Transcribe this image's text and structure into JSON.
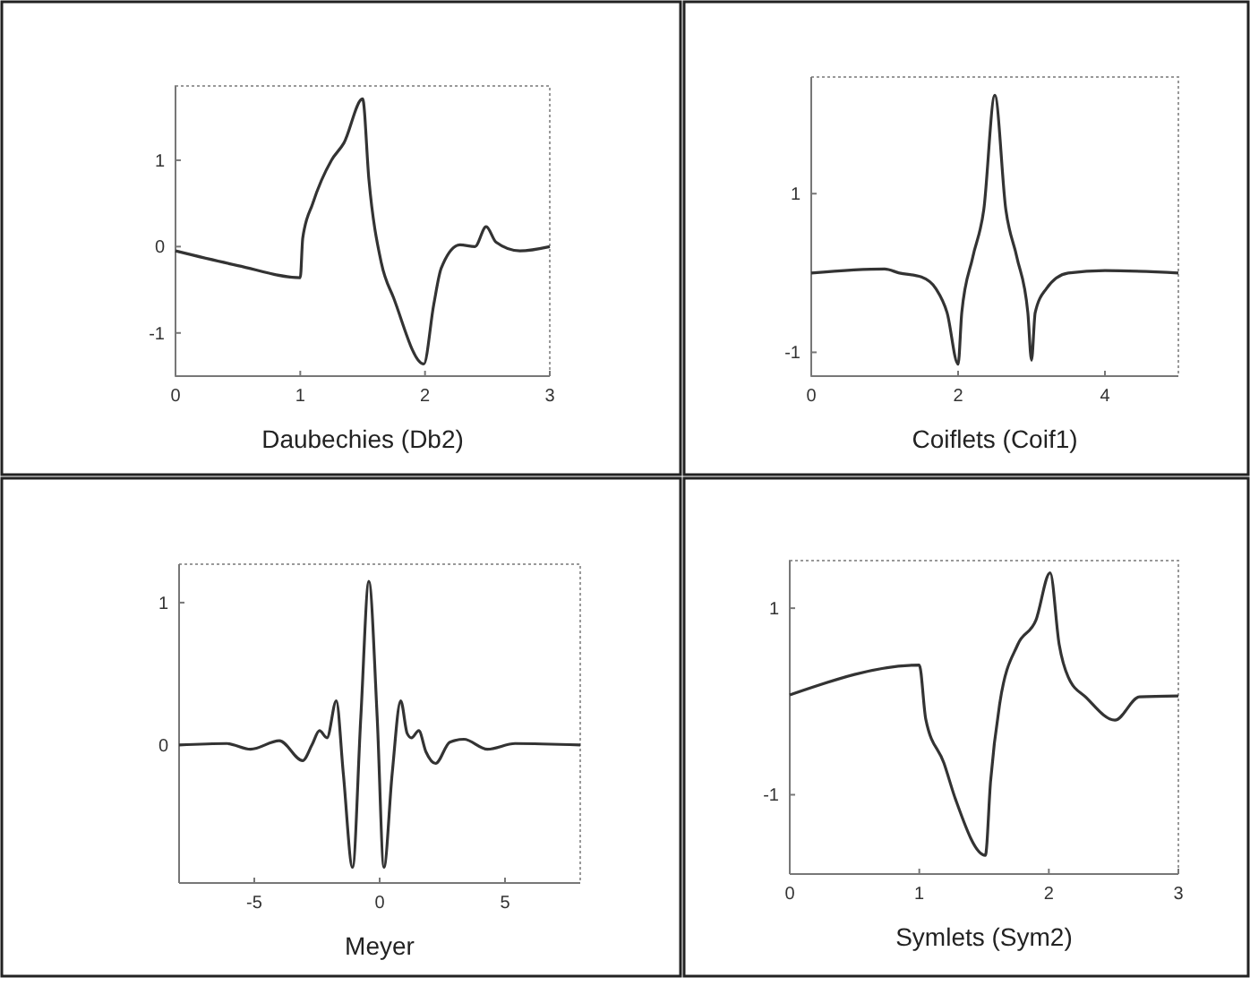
{
  "chart_data": [
    {
      "type": "line",
      "xlabel": "Daubechies (Db2)",
      "xlim": [
        0,
        3
      ],
      "ylim": [
        -1.5,
        1.86
      ],
      "xticks": [
        0,
        1,
        2,
        3
      ],
      "yticks": [
        -1,
        0,
        1
      ],
      "grid": false,
      "series": [
        {
          "color": "#333333",
          "x": [
            0,
            0.5,
            1,
            1.02,
            1.1,
            1.25,
            1.35,
            1.5,
            1.55,
            1.65,
            1.75,
            1.99,
            2.07,
            2.13,
            2.28,
            2.4,
            2.49,
            2.57,
            2.76,
            3
          ],
          "values": [
            -0.05,
            -0.22,
            -0.36,
            0.1,
            0.5,
            1.0,
            1.2,
            1.71,
            0.78,
            -0.19,
            -0.6,
            -1.36,
            -0.67,
            -0.25,
            0.02,
            0.0,
            0.23,
            0.05,
            -0.05,
            0
          ]
        }
      ]
    },
    {
      "type": "line",
      "xlabel": "Coiflets (Coif1)",
      "xlim": [
        0,
        5
      ],
      "ylim": [
        -1.3,
        2.47
      ],
      "xticks": [
        0,
        2,
        4
      ],
      "yticks": [
        -1,
        1
      ],
      "grid": false,
      "series": [
        {
          "color": "#333333",
          "x": [
            0,
            1,
            1.2,
            1.5,
            1.7,
            1.85,
            2.0,
            2.05,
            2.2,
            2.35,
            2.5,
            2.65,
            2.8,
            2.95,
            3.0,
            3.05,
            3.2,
            3.5,
            4,
            5
          ],
          "values": [
            0,
            0.05,
            0,
            -0.05,
            -0.2,
            -0.5,
            -1.15,
            -0.5,
            0.2,
            0.8,
            2.24,
            0.8,
            0.2,
            -0.5,
            -1.1,
            -0.5,
            -0.2,
            0,
            0.03,
            0
          ]
        }
      ]
    },
    {
      "type": "line",
      "xlabel": "Meyer",
      "xlim": [
        -8,
        8
      ],
      "ylim": [
        -0.97,
        1.27
      ],
      "xticks": [
        -5,
        0,
        5
      ],
      "yticks": [
        0,
        1
      ],
      "grid": false,
      "series": [
        {
          "color": "#333333",
          "x": [
            -8,
            -6.1,
            -5.15,
            -4,
            -3.07,
            -2.7,
            -2.4,
            -2.1,
            -1.73,
            -1.45,
            -1.08,
            -0.75,
            -0.43,
            -0.1,
            0.17,
            0.5,
            0.84,
            1.1,
            1.27,
            1.56,
            1.85,
            2.23,
            2.8,
            3.36,
            4.3,
            5.4,
            8
          ],
          "values": [
            0,
            0.01,
            -0.03,
            0.03,
            -0.11,
            0,
            0.1,
            0.05,
            0.31,
            -0.2,
            -0.86,
            0.2,
            1.15,
            0.2,
            -0.86,
            -0.2,
            0.31,
            0.08,
            0.05,
            0.1,
            -0.05,
            -0.13,
            0.02,
            0.04,
            -0.03,
            0.01,
            0
          ]
        }
      ]
    },
    {
      "type": "line",
      "xlabel": "Symlets (Sym2)",
      "xlim": [
        0,
        3
      ],
      "ylim": [
        -1.85,
        1.51
      ],
      "xticks": [
        0,
        1,
        2,
        3
      ],
      "yticks": [
        -1,
        1
      ],
      "grid": false,
      "series": [
        {
          "color": "#333333",
          "x": [
            0,
            1,
            1.05,
            1.19,
            1.28,
            1.51,
            1.55,
            1.62,
            1.76,
            1.9,
            2.01,
            2.08,
            2.15,
            2.29,
            2.51,
            2.7,
            3
          ],
          "values": [
            0.07,
            0.39,
            -0.19,
            -0.66,
            -1.05,
            -1.65,
            -0.86,
            -0.03,
            0.61,
            0.87,
            1.38,
            0.61,
            0.26,
            0.04,
            -0.2,
            0.05,
            0.06
          ]
        }
      ]
    }
  ]
}
